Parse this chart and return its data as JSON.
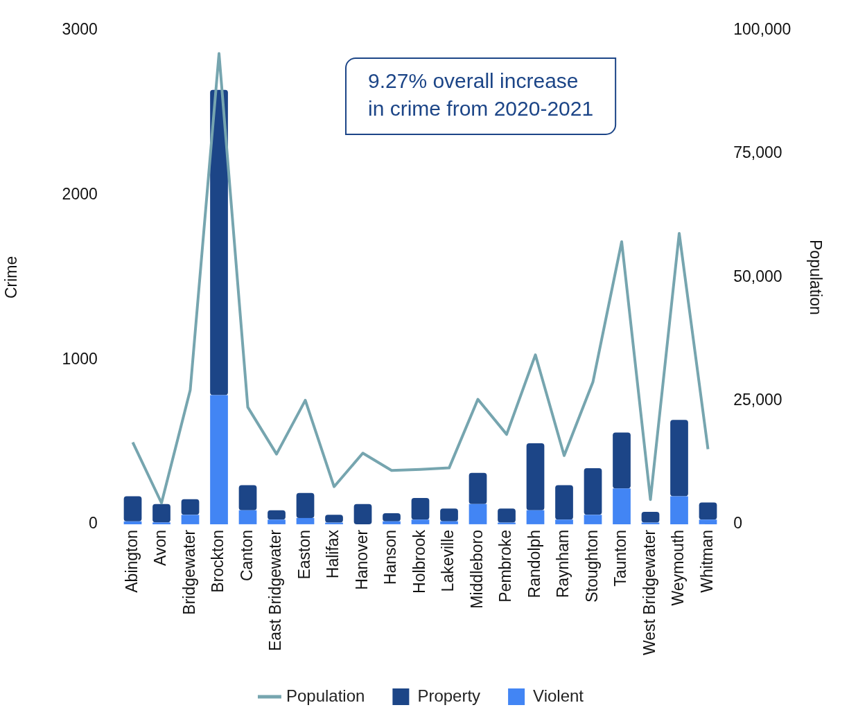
{
  "chart_data": {
    "type": "bar",
    "stacked": true,
    "ylabel": "Crime",
    "y2label": "Population",
    "categories": [
      "Abington",
      "Avon",
      "Bridgewater",
      "Brockton",
      "Canton",
      "East Bridgewater",
      "Easton",
      "Halifax",
      "Hanover",
      "Hanson",
      "Holbrook",
      "Lakeville",
      "Middleboro",
      "Pembroke",
      "Randolph",
      "Raynham",
      "Stoughton",
      "Taunton",
      "West Bridgewater",
      "Weymouth",
      "Whitman"
    ],
    "series": [
      {
        "name": "Violent",
        "color": "#4285f4",
        "values": [
          18,
          11,
          57,
          784,
          85,
          28,
          38,
          10,
          0,
          18,
          28,
          18,
          123,
          10,
          85,
          28,
          57,
          217,
          10,
          170,
          28
        ]
      },
      {
        "name": "Property",
        "color": "#1c4587",
        "values": [
          152,
          112,
          95,
          1854,
          152,
          57,
          152,
          47,
          123,
          49,
          132,
          77,
          189,
          85,
          407,
          209,
          283,
          340,
          65,
          464,
          104
        ]
      },
      {
        "name": "Population",
        "type": "line",
        "axis": "y2",
        "color": "#76a5af",
        "values": [
          16600,
          4300,
          27200,
          95300,
          23700,
          14200,
          25100,
          7600,
          14400,
          10900,
          11100,
          11400,
          25300,
          18200,
          34300,
          13900,
          28800,
          57200,
          5000,
          58900,
          15200
        ]
      }
    ],
    "ylim": [
      0,
      3000
    ],
    "yticks": [
      0,
      1000,
      2000,
      3000
    ],
    "y2lim": [
      0,
      100000
    ],
    "y2ticks": [
      0,
      {
        "value": 25000,
        "label": "25,000"
      },
      {
        "value": 50000,
        "label": "50,000"
      },
      {
        "value": 75000,
        "label": "75,000"
      },
      {
        "value": 100000,
        "label": "100,000"
      }
    ],
    "annotations": [
      "9.27% overall increase in crime from 2020-2021"
    ],
    "legend": "bottom",
    "marker": "none"
  }
}
